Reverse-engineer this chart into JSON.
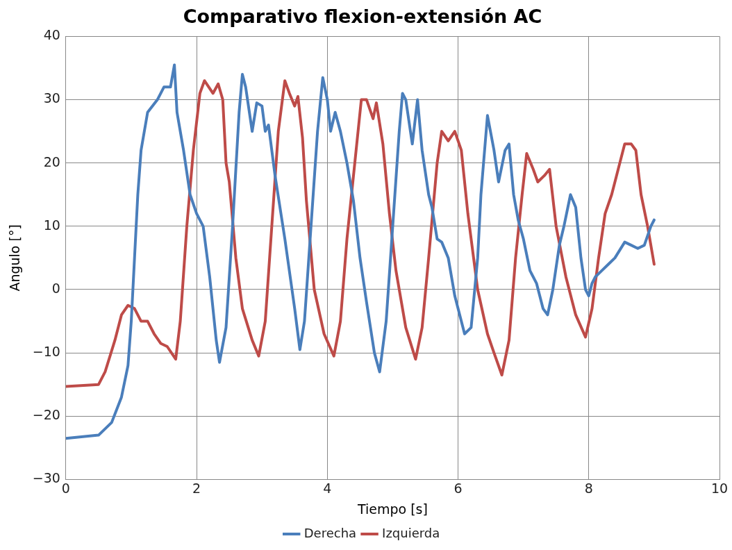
{
  "chart_data": {
    "type": "line",
    "title": "Comparativo flexion-extensión AC",
    "xlabel": "Tiempo [s]",
    "ylabel": "Angulo [°]",
    "xlim": [
      0,
      10
    ],
    "xticks": [
      0,
      2,
      4,
      6,
      8,
      10
    ],
    "ylim": [
      -30,
      40
    ],
    "yticks": [
      -30,
      -20,
      -10,
      0,
      10,
      20,
      30,
      40
    ],
    "grid": true,
    "legend": "bottom",
    "marker": "none",
    "line_style": "solid",
    "series": [
      {
        "name": "Derecha",
        "color": "#4a7ebb",
        "x": [
          0,
          0.5,
          0.7,
          0.85,
          0.95,
          1.0,
          1.05,
          1.1,
          1.15,
          1.25,
          1.4,
          1.5,
          1.6,
          1.66,
          1.7,
          1.8,
          1.9,
          2.0,
          2.1,
          2.2,
          2.3,
          2.35,
          2.45,
          2.55,
          2.65,
          2.7,
          2.75,
          2.85,
          2.92,
          3.0,
          3.05,
          3.1,
          3.2,
          3.35,
          3.5,
          3.58,
          3.65,
          3.75,
          3.85,
          3.93,
          4.0,
          4.05,
          4.12,
          4.2,
          4.3,
          4.4,
          4.5,
          4.6,
          4.72,
          4.8,
          4.9,
          5.0,
          5.1,
          5.15,
          5.2,
          5.3,
          5.38,
          5.45,
          5.55,
          5.6,
          5.68,
          5.75,
          5.85,
          5.95,
          6.05,
          6.1,
          6.2,
          6.3,
          6.35,
          6.45,
          6.55,
          6.62,
          6.72,
          6.78,
          6.85,
          6.92,
          7.0,
          7.1,
          7.2,
          7.3,
          7.37,
          7.45,
          7.55,
          7.62,
          7.72,
          7.8,
          7.88,
          7.95,
          8.0,
          8.05,
          8.1,
          8.2,
          8.3,
          8.4,
          8.55,
          8.65,
          8.75,
          8.85,
          8.95,
          9.0
        ],
        "values": [
          -23.5,
          -23,
          -21,
          -17,
          -12,
          -5,
          5,
          15,
          22,
          28,
          30,
          32,
          32,
          35.5,
          28,
          22,
          15,
          12,
          10,
          2,
          -8,
          -11.5,
          -6,
          10,
          28,
          34,
          32,
          25,
          29.5,
          29,
          25,
          26,
          18,
          8,
          -3,
          -9.5,
          -5,
          10,
          25,
          33.5,
          30,
          25,
          28,
          25,
          20,
          14,
          5,
          -2,
          -10,
          -13,
          -5,
          10,
          25,
          31,
          30,
          23,
          30,
          22,
          15,
          13,
          8,
          7.5,
          5,
          -1,
          -5,
          -7,
          -6,
          5,
          15,
          27.5,
          22,
          17,
          22,
          23,
          15,
          11,
          8,
          3,
          1,
          -3,
          -4,
          0,
          7,
          10,
          15,
          13,
          5,
          0,
          -1,
          1,
          2,
          3,
          4,
          5,
          7.5,
          7,
          6.5,
          7,
          10,
          11
        ]
      },
      {
        "name": "Izquierda",
        "color": "#be4b48",
        "x": [
          0,
          0.5,
          0.6,
          0.75,
          0.85,
          0.95,
          1.05,
          1.15,
          1.25,
          1.35,
          1.45,
          1.55,
          1.68,
          1.75,
          1.85,
          1.95,
          2.05,
          2.12,
          2.25,
          2.33,
          2.4,
          2.45,
          2.5,
          2.6,
          2.7,
          2.85,
          2.95,
          3.05,
          3.15,
          3.25,
          3.35,
          3.42,
          3.5,
          3.55,
          3.62,
          3.68,
          3.8,
          3.95,
          4.1,
          4.2,
          4.3,
          4.42,
          4.52,
          4.6,
          4.7,
          4.75,
          4.85,
          4.95,
          5.05,
          5.2,
          5.35,
          5.45,
          5.55,
          5.68,
          5.75,
          5.85,
          5.95,
          6.05,
          6.15,
          6.3,
          6.45,
          6.55,
          6.67,
          6.78,
          6.88,
          6.98,
          7.05,
          7.15,
          7.22,
          7.32,
          7.4,
          7.5,
          7.65,
          7.8,
          7.95,
          8.05,
          8.15,
          8.25,
          8.35,
          8.45,
          8.55,
          8.65,
          8.72,
          8.8,
          8.9,
          9.0
        ],
        "values": [
          -15.3,
          -15,
          -13,
          -8,
          -4,
          -2.5,
          -3,
          -5,
          -5,
          -7,
          -8.5,
          -9,
          -11,
          -5,
          10,
          22,
          31,
          33,
          31,
          32.5,
          30,
          20,
          17,
          5,
          -3,
          -8,
          -10.5,
          -5,
          10,
          25,
          33,
          31,
          29,
          30.5,
          24,
          14,
          0,
          -7,
          -10.5,
          -5,
          8,
          20,
          30,
          30,
          27,
          29.5,
          23,
          12,
          3,
          -6,
          -11,
          -6,
          5,
          20,
          25,
          23.5,
          25,
          22,
          12,
          0,
          -7,
          -10,
          -13.5,
          -8,
          5,
          15,
          21.5,
          19,
          17,
          18,
          19,
          10,
          2,
          -4,
          -7.5,
          -3,
          5,
          12,
          15,
          19,
          23,
          23,
          22,
          15,
          10,
          4
        ]
      }
    ]
  }
}
